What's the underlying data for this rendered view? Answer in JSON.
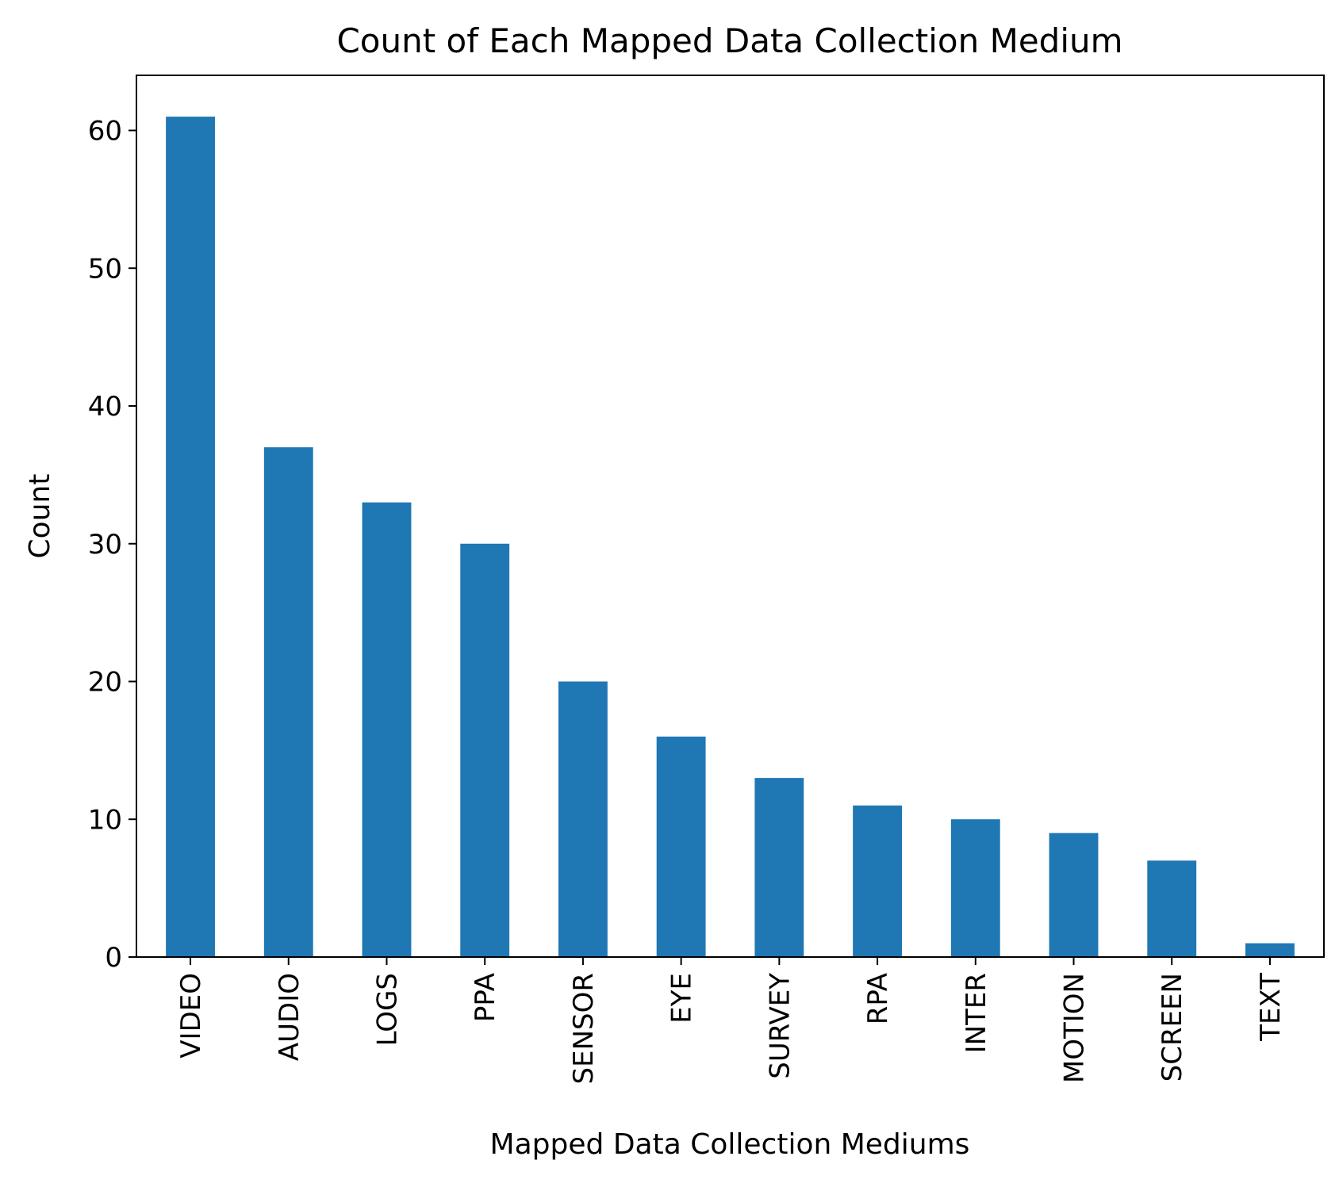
{
  "chart_data": {
    "type": "bar",
    "title": "Count of Each Mapped Data Collection Medium",
    "xlabel": "Mapped Data Collection Mediums",
    "ylabel": "Count",
    "categories": [
      "VIDEO",
      "AUDIO",
      "LOGS",
      "PPA",
      "SENSOR",
      "EYE",
      "SURVEY",
      "RPA",
      "INTER",
      "MOTION",
      "SCREEN",
      "TEXT"
    ],
    "values": [
      61,
      37,
      33,
      30,
      20,
      16,
      13,
      11,
      10,
      9,
      7,
      1
    ],
    "ylim": [
      0,
      64
    ],
    "yticks": [
      0,
      10,
      20,
      30,
      40,
      50,
      60
    ],
    "bar_color": "#1f77b4",
    "grid": false,
    "legend": "none"
  }
}
